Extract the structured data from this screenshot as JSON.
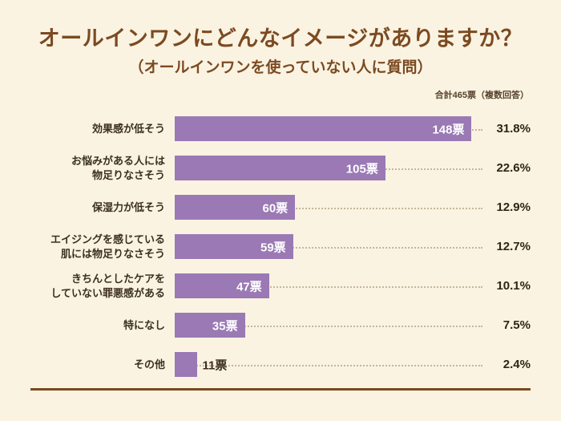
{
  "colors": {
    "background": "#faf3e2",
    "title": "#7c4a21",
    "bar": "#9a79b4",
    "text": "#3d3020",
    "baseline": "#7c4a21"
  },
  "header": {
    "title": "オールインワンにどんなイメージがありますか？",
    "subtitle": "（オールインワンを使っていない人に質問）",
    "note": "合計465票（複数回答）"
  },
  "chart_data": {
    "type": "bar",
    "orientation": "horizontal",
    "title": "オールインワンにどんなイメージがありますか？",
    "subtitle": "（オールインワンを使っていない人に質問）",
    "note": "合計465票（複数回答）",
    "unit": "票",
    "xlim": [
      0,
      155
    ],
    "grid": false,
    "legend": false,
    "categories": [
      "効果感が低そう",
      "お悩みがある人には物足りなさそう",
      "保湿力が低そう",
      "エイジングを感じている肌には物足りなさそう",
      "きちんとしたケアをしていない罪悪感がある",
      "特になし",
      "その他"
    ],
    "values": [
      148,
      105,
      60,
      59,
      47,
      35,
      11
    ],
    "percentages": [
      31.8,
      22.6,
      12.9,
      12.7,
      10.1,
      7.5,
      2.4
    ],
    "rows": [
      {
        "label": "効果感が低そう",
        "votes": 148,
        "vote_label": "148票",
        "percent": "31.8%"
      },
      {
        "label": "お悩みがある人には\n物足りなさそう",
        "votes": 105,
        "vote_label": "105票",
        "percent": "22.6%"
      },
      {
        "label": "保湿力が低そう",
        "votes": 60,
        "vote_label": "60票",
        "percent": "12.9%"
      },
      {
        "label": "エイジングを感じている\n肌には物足りなさそう",
        "votes": 59,
        "vote_label": "59票",
        "percent": "12.7%"
      },
      {
        "label": "きちんとしたケアを\nしていない罪悪感がある",
        "votes": 47,
        "vote_label": "47票",
        "percent": "10.1%"
      },
      {
        "label": "特になし",
        "votes": 35,
        "vote_label": "35票",
        "percent": "7.5%"
      },
      {
        "label": "その他",
        "votes": 11,
        "vote_label": "11票",
        "percent": "2.4%"
      }
    ]
  }
}
